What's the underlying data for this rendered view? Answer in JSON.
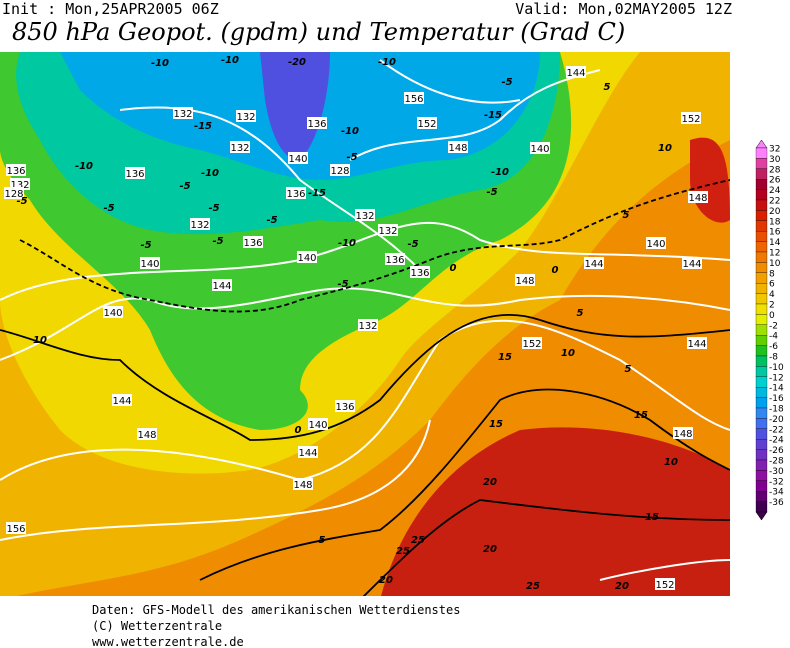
{
  "header": {
    "init": "Init : Mon,25APR2005 06Z",
    "valid": "Valid: Mon,02MAY2005 12Z",
    "title": "850 hPa Geopot. (gpdm) und Temperatur (Grad C)"
  },
  "map": {
    "geopotential_labels": [
      132,
      132,
      132,
      136,
      140,
      136,
      128,
      132,
      132,
      136,
      140,
      136,
      136,
      132,
      136,
      140,
      144,
      148,
      144,
      140,
      140,
      144,
      148,
      156,
      136,
      132,
      128,
      136,
      132,
      156,
      152,
      148,
      140,
      144,
      152,
      148,
      140,
      144,
      144,
      148,
      152,
      144,
      148,
      152
    ],
    "temperature_labels": [
      -10,
      -10,
      -20,
      -10,
      -15,
      -10,
      -5,
      -10,
      -5,
      -5,
      -15,
      -5,
      -10,
      -15,
      -5,
      -10,
      -5,
      -10,
      -5,
      -5,
      -5,
      -5,
      -5,
      -5,
      0,
      0,
      0,
      5,
      5,
      5,
      10,
      10,
      10,
      10,
      15,
      15,
      15,
      15,
      20,
      20,
      20,
      20,
      25,
      25,
      25,
      5,
      5
    ]
  },
  "colorbar": {
    "labels": [
      32,
      30,
      28,
      26,
      24,
      22,
      20,
      18,
      16,
      14,
      12,
      10,
      8,
      6,
      4,
      2,
      0,
      -2,
      -4,
      -6,
      -8,
      -10,
      -12,
      -14,
      -16,
      -18,
      -20,
      -22,
      -24,
      -26,
      -28,
      -30,
      -32,
      -34,
      -36
    ],
    "colors": [
      "#ff80ff",
      "#e040a0",
      "#c02060",
      "#a00030",
      "#b40020",
      "#c81010",
      "#d82000",
      "#e03800",
      "#e85000",
      "#f06400",
      "#f07800",
      "#f08c00",
      "#f0a000",
      "#f0b400",
      "#f0c800",
      "#f0e000",
      "#e0f000",
      "#a0e000",
      "#60d000",
      "#20c020",
      "#00c060",
      "#00c8a0",
      "#00d0d0",
      "#00b8e0",
      "#00a0f0",
      "#3088f0",
      "#4070f0",
      "#5050e0",
      "#6040d0",
      "#7030c0",
      "#8020b0",
      "#9010a0",
      "#800090",
      "#600070",
      "#400050"
    ]
  },
  "footer": {
    "line1": "Daten: GFS-Modell des amerikanischen Wetterdienstes",
    "line2": "(C) Wetterzentrale",
    "line3": "www.wetterzentrale.de"
  }
}
